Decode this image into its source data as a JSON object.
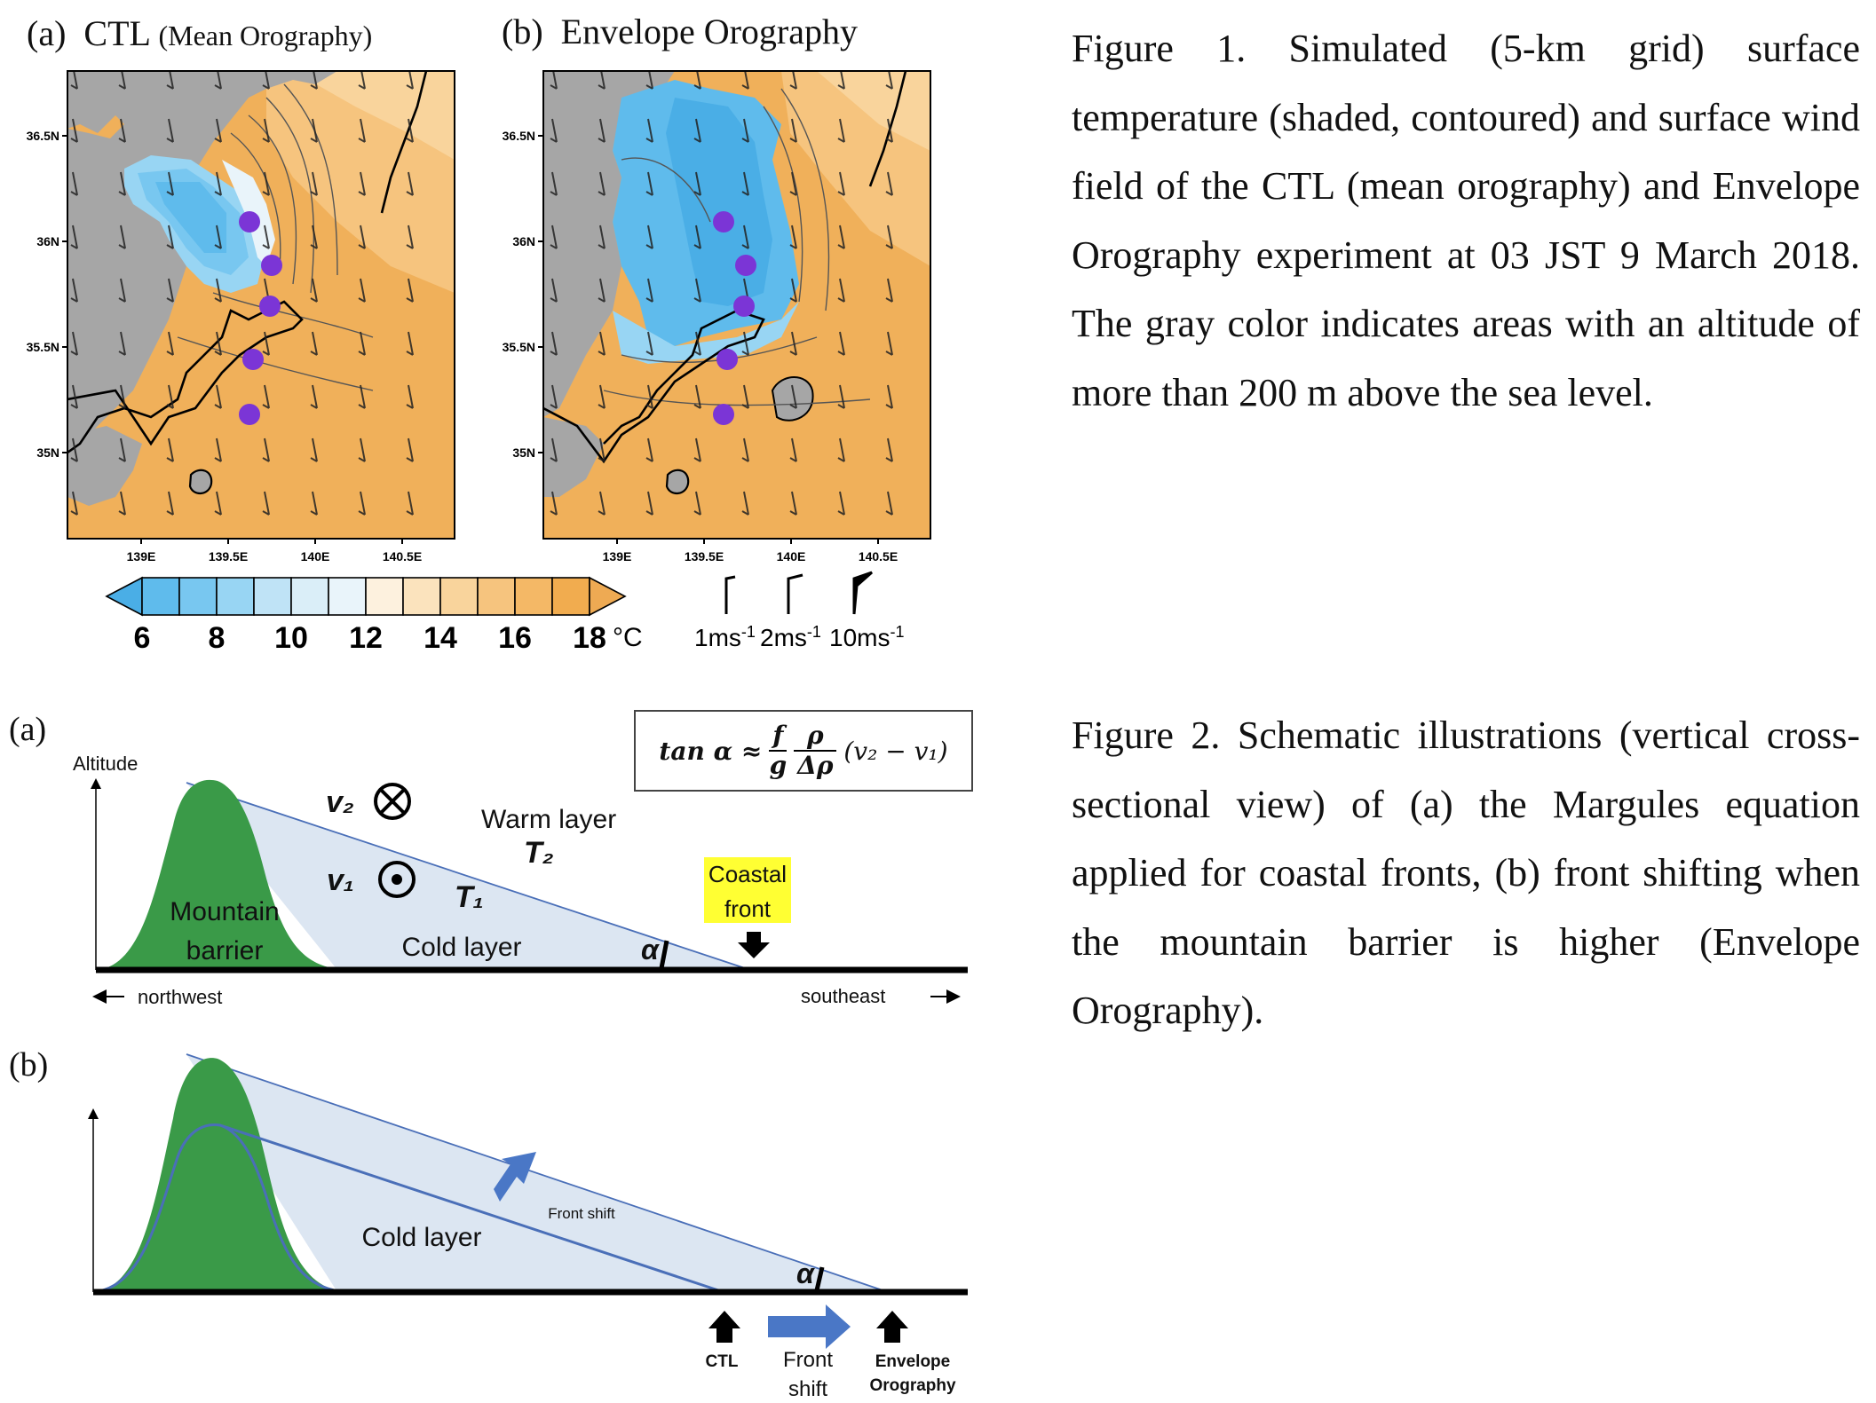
{
  "figure1": {
    "panel_a_label": "(a)",
    "panel_a_title": "CTL",
    "panel_a_subtitle": "(Mean Orography)",
    "panel_b_label": "(b)",
    "panel_b_title": "Envelope Orography",
    "lat_labels": [
      "36.5N",
      "36N",
      "35.5N",
      "35N"
    ],
    "lon_labels": [
      "139E",
      "139.5E",
      "140E",
      "140.5E"
    ],
    "colorbar_ticks": [
      "6",
      "8",
      "10",
      "12",
      "14",
      "16",
      "18"
    ],
    "colorbar_unit": "°C",
    "colorbar_colors": [
      "#4aaee6",
      "#5fbbec",
      "#78c7f0",
      "#98d5f3",
      "#bfe3f6",
      "#e9f4fa",
      "#fdf1de",
      "#fbe3bd",
      "#f9d49c",
      "#f6c47e",
      "#f4b866",
      "#f1ac4f",
      "#eeaa53"
    ],
    "wind_legend": [
      "1ms",
      "2ms",
      "10ms"
    ],
    "wind_legend_exp": "-1",
    "land_gray": "#a6a6a6",
    "marker_color": "#7b35d6",
    "caption": "Figure 1. Simulated (5-km grid) surface temperature (shaded, contoured) and surface wind field of the CTL (mean orography) and Envelope Orography experiment at 03 JST 9 March 2018. The gray color indicates areas with an altitude of more than 200 m above the sea level."
  },
  "figure2": {
    "panel_a_label": "(a)",
    "panel_b_label": "(b)",
    "equation_lhs": "tan α ≈",
    "equation_f": "f",
    "equation_g": "g",
    "equation_rho": "ρ",
    "equation_drho": "Δρ",
    "equation_rhs": "(v₂ − v₁)",
    "altitude_label": "Altitude",
    "v2": "v₂",
    "v1": "v₁",
    "warm_layer": "Warm layer",
    "t2": "T₂",
    "t1": "T₁",
    "mountain_line1": "Mountain",
    "mountain_line2": "barrier",
    "cold_layer_a": "Cold layer",
    "alpha": "α",
    "coastal_line1": "Coastal",
    "coastal_line2": "front",
    "northwest": "northwest",
    "southeast": "southeast",
    "cold_layer_b": "Cold layer",
    "front_shift_small": "Front shift",
    "ctl": "CTL",
    "front_line1": "Front",
    "front_line2": "shift",
    "envelope_line1": "Envelope",
    "envelope_line2": "Orography",
    "mountain_green": "#3a9a48",
    "layer_blue": "#dce6f2",
    "line_blue": "#4a6fb8",
    "highlight_yellow": "#ffff33",
    "caption": "Figure 2. Schematic illustrations (vertical cross-sectional view) of (a) the Margules equation applied for coastal fronts, (b) front shifting when the mountain barrier is higher (Envelope Orography)."
  }
}
